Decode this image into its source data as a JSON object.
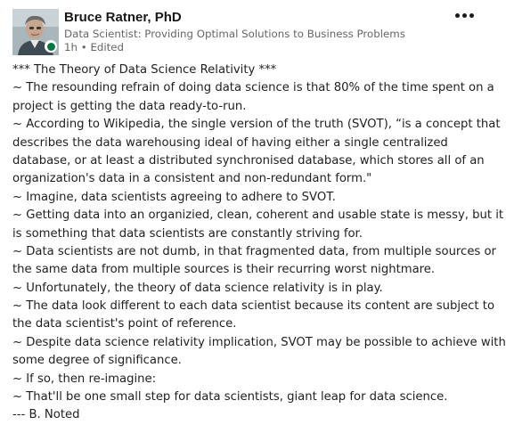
{
  "author": {
    "name": "Bruce Ratner, PhD",
    "headline": "Data Scientist: Providing Optimal Solutions to Business Problems",
    "time": "1h",
    "separator": "•",
    "edited": "Edited"
  },
  "icons": {
    "avatar": "person-photo",
    "presence": "online-dot",
    "more": "three-dots-menu",
    "globe": "globe-icon"
  },
  "colors": {
    "presence": "#057642",
    "text": "#191919",
    "muted": "#666666"
  },
  "post": {
    "lines": [
      "*** The Theory of Data Science Relativity ***",
      "~ The resounding refrain of doing data science is that 80% of the time spent on a",
      "project is getting the data ready-to-run.",
      "~ According to Wikipedia, the single version of the truth (SVOT), “is a concept that",
      "describes the data warehousing ideal of having either a single centralized",
      "database, or at least a distributed synchronised database, which stores all of an",
      "organization's data in a consistent and non-redundant form.\"",
      "~ Imagine, data scientists agreeing to adhere to SVOT.",
      "~ Getting data into an organizied, clean, coherent and usable state is messy, but it",
      "is something that data scientists are constantly striving for.",
      "~ Data scientists are not dumb, in that fragmented data, from multiple sources or",
      "the same data from multiple sources is their recurring worst nightmare.",
      "~ Unfortunately, the theory of data science relativity is in play.",
      "~ The data look different to each data scientist because its content are subject to",
      "the data scientist's point of reference.",
      "~ Despite data science relativity implication, SVOT may be possible to achieve with",
      "some degree of significance.",
      "~ If so, then re-imagine:",
      "~ That'll be one small step for data scientists, giant leap for data science.",
      "--- B.  Noted"
    ]
  }
}
